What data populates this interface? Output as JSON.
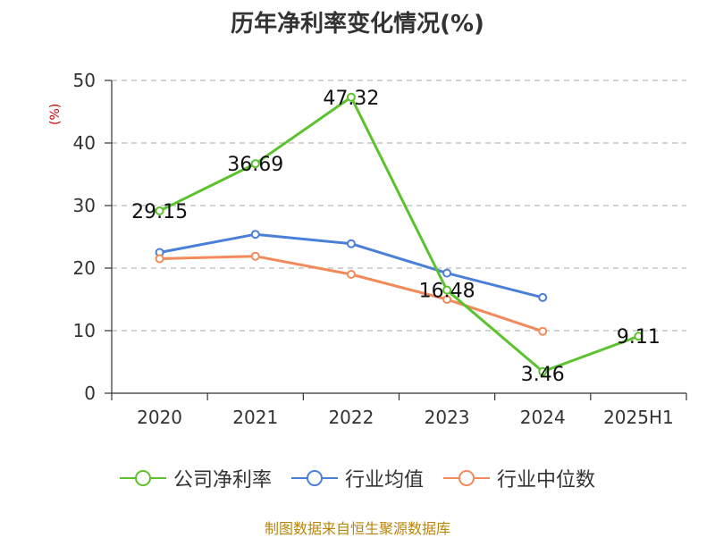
{
  "chart_data": {
    "type": "line",
    "title": "历年净利率变化情况(%)",
    "ylabel": "(%)",
    "xlabel": "",
    "categories": [
      "2020",
      "2021",
      "2022",
      "2023",
      "2024",
      "2025H1"
    ],
    "ylim": [
      0,
      50
    ],
    "yticks": [
      0,
      10,
      20,
      30,
      40,
      50
    ],
    "grid": true,
    "legend_position": "bottom",
    "series": [
      {
        "name": "公司净利率",
        "color": "#5cc22d",
        "values": [
          29.15,
          36.69,
          47.32,
          16.48,
          3.46,
          9.11
        ],
        "labels": [
          "29.15",
          "36.69",
          "47.32",
          "16.48",
          "3.46",
          "9.11"
        ]
      },
      {
        "name": "行业均值",
        "color": "#4a7fd9",
        "values": [
          22.5,
          25.4,
          23.9,
          19.2,
          15.3,
          null
        ],
        "labels": []
      },
      {
        "name": "行业中位数",
        "color": "#f28a5b",
        "values": [
          21.5,
          21.9,
          19.0,
          15.0,
          9.9,
          null
        ],
        "labels": []
      }
    ]
  },
  "source_text": "制图数据来自恒生聚源数据库"
}
